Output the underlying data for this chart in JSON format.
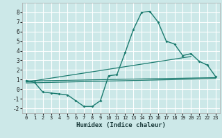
{
  "title": "",
  "xlabel": "Humidex (Indice chaleur)",
  "ylabel": "",
  "bg_color": "#cce8e8",
  "grid_color": "#ffffff",
  "line_color": "#1a7a6e",
  "xlim": [
    -0.5,
    23.5
  ],
  "ylim": [
    -2.5,
    9.0
  ],
  "xticks": [
    0,
    1,
    2,
    3,
    4,
    5,
    6,
    7,
    8,
    9,
    10,
    11,
    12,
    13,
    14,
    15,
    16,
    17,
    18,
    19,
    20,
    21,
    22,
    23
  ],
  "yticks": [
    -2,
    -1,
    0,
    1,
    2,
    3,
    4,
    5,
    6,
    7,
    8
  ],
  "series1_x": [
    0,
    1,
    2,
    3,
    4,
    5,
    6,
    7,
    8,
    9,
    10,
    11,
    12,
    13,
    14,
    15,
    16,
    17,
    18,
    19,
    20,
    21,
    22,
    23
  ],
  "series1_y": [
    0.9,
    0.7,
    -0.3,
    -0.4,
    -0.5,
    -0.6,
    -1.2,
    -1.8,
    -1.8,
    -1.2,
    1.4,
    1.5,
    3.8,
    6.2,
    8.0,
    8.1,
    7.0,
    5.0,
    4.7,
    3.5,
    3.7,
    2.9,
    2.5,
    1.3
  ],
  "series2_x": [
    0,
    23
  ],
  "series2_y": [
    0.85,
    1.2
  ],
  "series3_x": [
    0,
    20
  ],
  "series3_y": [
    0.75,
    3.4
  ],
  "series4_x": [
    0,
    23
  ],
  "series4_y": [
    0.65,
    1.1
  ]
}
